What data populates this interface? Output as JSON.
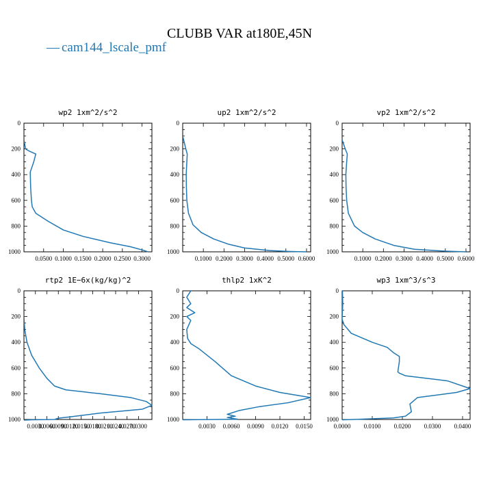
{
  "figure": {
    "title": "CLUBB VAR at180E,45N",
    "legend": [
      {
        "name": "cam144_lscale_pmf",
        "color": "#1f77b4",
        "marker": "—"
      }
    ]
  },
  "chart_data": [
    {
      "type": "line",
      "title": "wp2  1xm^2/s^2",
      "xlim": [
        0.0,
        0.325
      ],
      "ylim": [
        1000,
        0
      ],
      "xticks": [
        0.05,
        0.1,
        0.15,
        0.2,
        0.25,
        0.3
      ],
      "xticklabels": [
        "0.0500",
        "0.1000",
        "0.1500",
        "0.2000",
        "0.2500",
        "0.3000"
      ],
      "yticks": [
        0,
        200,
        400,
        600,
        800,
        1000
      ],
      "series": [
        {
          "color": "#1f77b4",
          "x": [
            0.0,
            0.004,
            0.012,
            0.03,
            0.025,
            0.016,
            0.017,
            0.019,
            0.021,
            0.03,
            0.06,
            0.1,
            0.15,
            0.22,
            0.27,
            0.3,
            0.315
          ],
          "y": [
            130,
            200,
            215,
            240,
            300,
            380,
            500,
            600,
            650,
            700,
            760,
            830,
            880,
            930,
            960,
            985,
            1000
          ]
        }
      ]
    },
    {
      "type": "line",
      "title": "up2  1xm^2/s^2",
      "xlim": [
        0.0,
        0.62
      ],
      "ylim": [
        1000,
        0
      ],
      "xticks": [
        0.1,
        0.2,
        0.3,
        0.4,
        0.5,
        0.6
      ],
      "xticklabels": [
        "0.1000",
        "0.2000",
        "0.3000",
        "0.4000",
        "0.5000",
        "0.6000"
      ],
      "yticks": [
        0,
        200,
        400,
        600,
        800,
        1000
      ],
      "series": [
        {
          "color": "#1f77b4",
          "x": [
            0.0,
            0.015,
            0.022,
            0.02,
            0.017,
            0.018,
            0.02,
            0.028,
            0.05,
            0.09,
            0.15,
            0.22,
            0.3,
            0.42,
            0.52,
            0.6
          ],
          "y": [
            100,
            200,
            240,
            300,
            400,
            500,
            600,
            700,
            790,
            850,
            900,
            940,
            970,
            990,
            997,
            1000
          ]
        }
      ]
    },
    {
      "type": "line",
      "title": "vp2  1xm^2/s^2",
      "xlim": [
        0.0,
        0.62
      ],
      "ylim": [
        1000,
        0
      ],
      "xticks": [
        0.1,
        0.2,
        0.3,
        0.4,
        0.5,
        0.6
      ],
      "xticklabels": [
        "0.1000",
        "0.2000",
        "0.3000",
        "0.4000",
        "0.5000",
        "0.6000"
      ],
      "yticks": [
        0,
        200,
        400,
        600,
        800,
        1000
      ],
      "series": [
        {
          "color": "#1f77b4",
          "x": [
            0.0,
            0.015,
            0.025,
            0.022,
            0.018,
            0.019,
            0.022,
            0.03,
            0.06,
            0.1,
            0.16,
            0.25,
            0.35,
            0.5,
            0.6
          ],
          "y": [
            130,
            200,
            240,
            300,
            400,
            500,
            600,
            700,
            800,
            850,
            900,
            950,
            980,
            995,
            1000
          ]
        }
      ]
    },
    {
      "type": "line",
      "title": "rtp2  1E−6x(kg/kg)^2",
      "xlim": [
        0.0,
        0.0335
      ],
      "ylim": [
        1000,
        0
      ],
      "xticks": [
        0.003,
        0.006,
        0.009,
        0.012,
        0.015,
        0.018,
        0.021,
        0.024,
        0.027,
        0.03
      ],
      "xticklabels": [
        "0.0030",
        "0.0060",
        "0.0090",
        "0.0120",
        "0.0150",
        "0.0180",
        "0.0210",
        "0.0240",
        "0.0270",
        "0.0300"
      ],
      "yticks": [
        0,
        200,
        400,
        600,
        800,
        1000
      ],
      "series": [
        {
          "color": "#1f77b4",
          "x": [
            0.0,
            0.0002,
            0.0008,
            0.002,
            0.004,
            0.006,
            0.008,
            0.011,
            0.02,
            0.028,
            0.032,
            0.0335,
            0.031,
            0.02,
            0.012,
            0.009,
            0.008,
            0.002,
            0.0
          ],
          "y": [
            200,
            300,
            400,
            500,
            600,
            680,
            740,
            770,
            800,
            830,
            860,
            890,
            920,
            950,
            980,
            990,
            1000,
            1003,
            1005
          ]
        }
      ]
    },
    {
      "type": "line",
      "title": "thlp2  1xK^2",
      "xlim": [
        0.0,
        0.0158
      ],
      "ylim": [
        1000,
        0
      ],
      "xticks": [
        0.003,
        0.006,
        0.009,
        0.012,
        0.015
      ],
      "xticklabels": [
        "0.0030",
        "0.0060",
        "0.0090",
        "0.0120",
        "0.0150"
      ],
      "yticks": [
        0,
        200,
        400,
        600,
        800,
        1000
      ],
      "series": [
        {
          "color": "#1f77b4",
          "x": [
            0.001,
            0.0005,
            0.001,
            0.0005,
            0.0015,
            0.0005,
            0.001,
            0.0005,
            0.0006,
            0.001,
            0.002,
            0.004,
            0.006,
            0.0075,
            0.009,
            0.012,
            0.0158,
            0.013,
            0.0095,
            0.007,
            0.0055,
            0.0065,
            0.0055,
            0.0068,
            0.0
          ],
          "y": [
            0,
            50,
            100,
            130,
            170,
            200,
            230,
            300,
            370,
            410,
            450,
            550,
            660,
            700,
            740,
            790,
            830,
            870,
            900,
            930,
            960,
            975,
            985,
            998,
            1003
          ]
        }
      ]
    },
    {
      "type": "line",
      "title": "wp3  1xm^3/s^3",
      "xlim": [
        0.0,
        0.0425
      ],
      "ylim": [
        1000,
        0
      ],
      "xticks": [
        0.0,
        0.01,
        0.02,
        0.03,
        0.04
      ],
      "xticklabels": [
        "0.0000",
        "0.0100",
        "0.0200",
        "0.0300",
        "0.0400"
      ],
      "yticks": [
        0,
        200,
        400,
        600,
        800,
        1000
      ],
      "series": [
        {
          "color": "#1f77b4",
          "x": [
            0.0001,
            0.0002,
            0.0,
            0.0005,
            0.003,
            0.01,
            0.015,
            0.017,
            0.019,
            0.019,
            0.0185,
            0.019,
            0.021,
            0.035,
            0.0425,
            0.038,
            0.025,
            0.0225,
            0.023,
            0.021,
            0.017,
            0.006,
            0.0
          ],
          "y": [
            0,
            100,
            220,
            260,
            330,
            400,
            440,
            480,
            510,
            550,
            630,
            640,
            660,
            700,
            760,
            790,
            830,
            880,
            940,
            975,
            988,
            998,
            1003
          ]
        }
      ]
    }
  ]
}
